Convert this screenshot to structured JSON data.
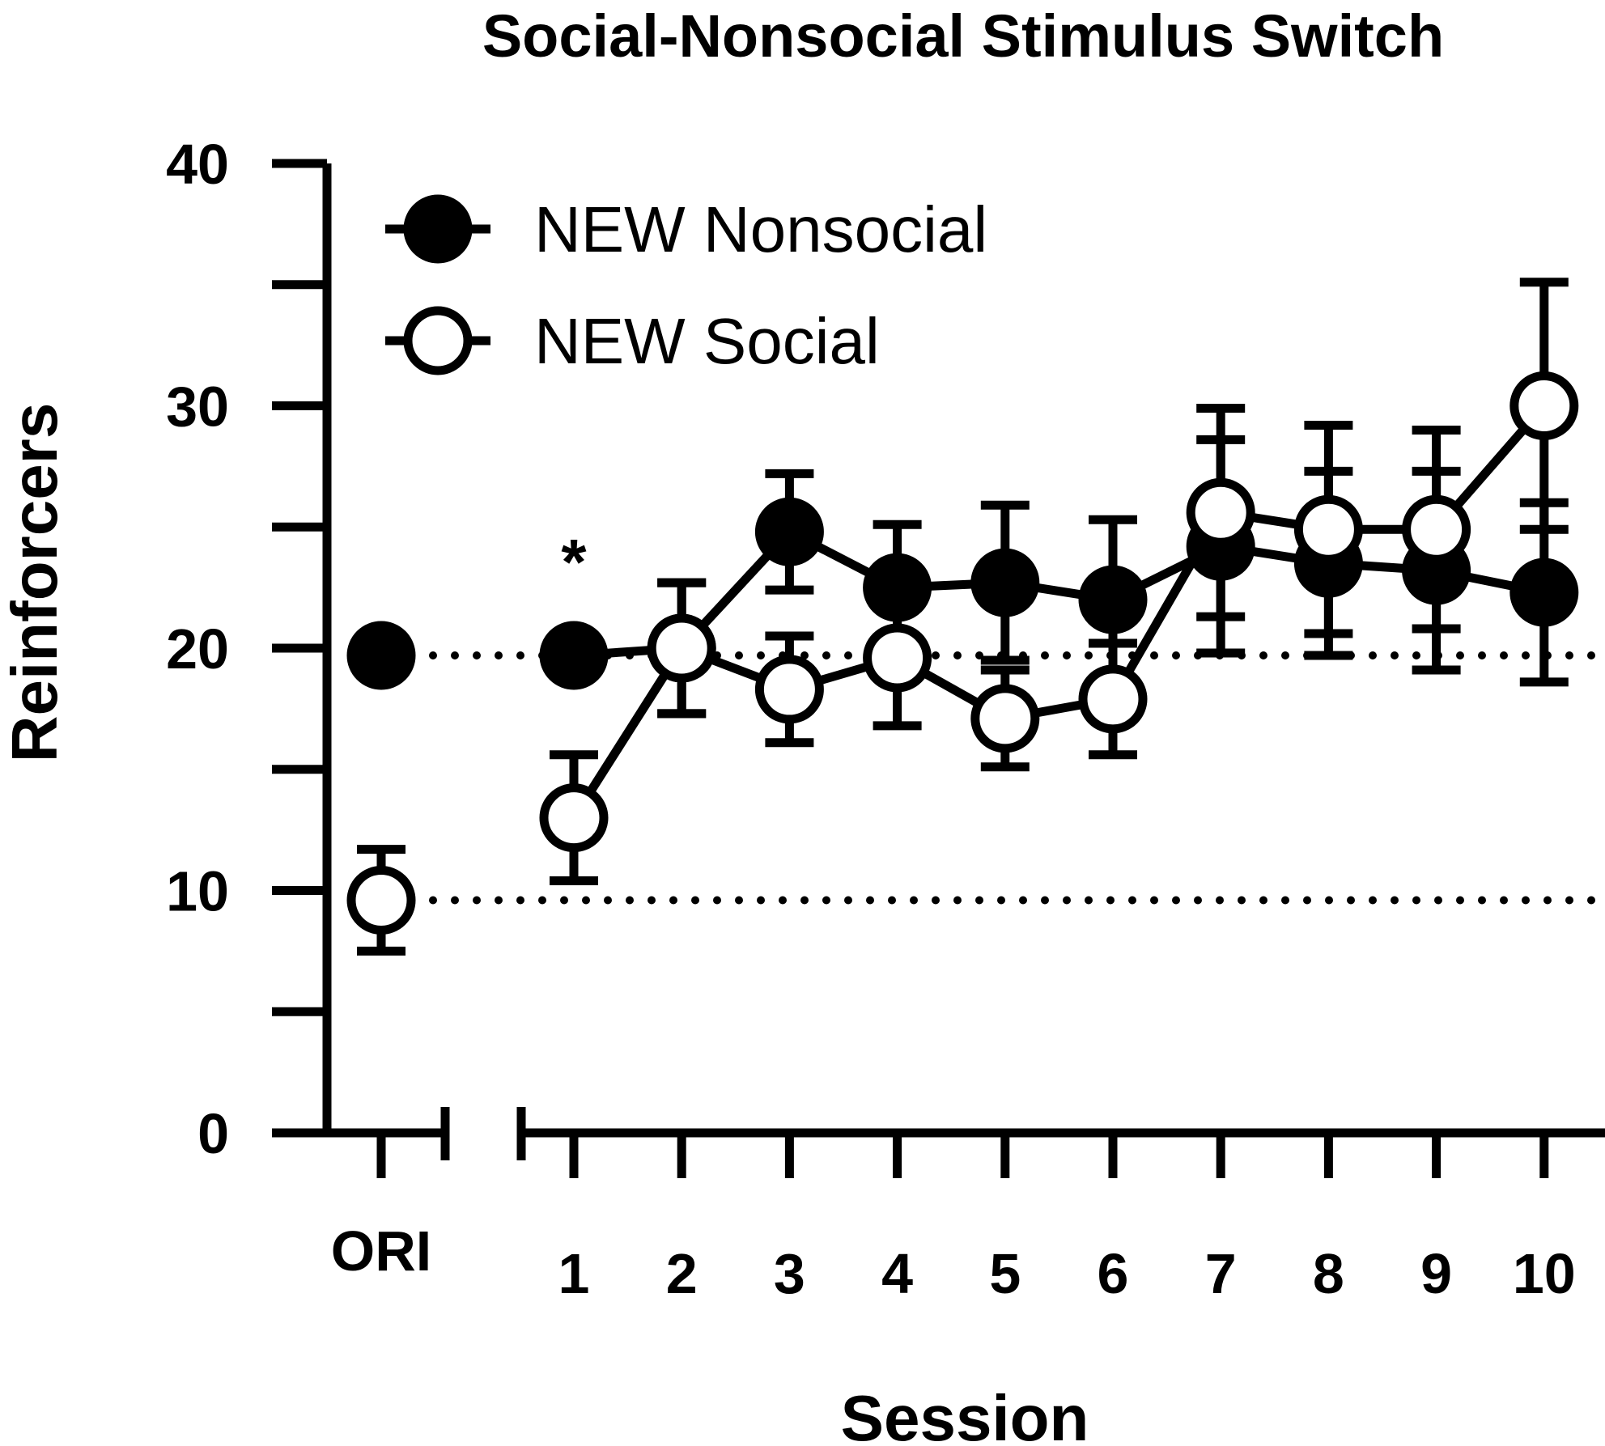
{
  "chart_data": {
    "type": "line",
    "title": "Social-Nonsocial Stimulus Switch",
    "xlabel": "Session",
    "ylabel": "Reinforcers",
    "ylim": [
      0,
      40
    ],
    "yticks": [
      "0",
      "10",
      "20",
      "30",
      "40"
    ],
    "baseline_label": "ORI",
    "categories": [
      "1",
      "2",
      "3",
      "4",
      "5",
      "6",
      "7",
      "8",
      "9",
      "10"
    ],
    "series": [
      {
        "name": "NEW Nonsocial",
        "marker": "filled",
        "baseline": {
          "value": 19.7,
          "err": 0
        },
        "values": [
          19.7,
          20.0,
          24.8,
          22.5,
          22.7,
          22.0,
          24.2,
          23.5,
          23.2,
          22.3
        ],
        "errors": [
          0,
          2.7,
          2.4,
          2.6,
          3.2,
          3.3,
          4.4,
          3.8,
          4.1,
          3.7
        ]
      },
      {
        "name": "NEW Social",
        "marker": "open",
        "baseline": {
          "value": 9.6,
          "err": 2.1
        },
        "values": [
          13.0,
          20.0,
          18.3,
          19.6,
          17.1,
          17.9,
          25.6,
          24.9,
          24.9,
          30.0
        ],
        "errors": [
          2.6,
          2.7,
          2.2,
          2.8,
          2.0,
          2.3,
          4.3,
          4.3,
          4.1,
          5.1
        ]
      }
    ],
    "reference_lines": [
      19.7,
      9.6
    ],
    "annotations": [
      {
        "text": "*",
        "session": "1"
      }
    ],
    "legend_position": "top-left"
  }
}
